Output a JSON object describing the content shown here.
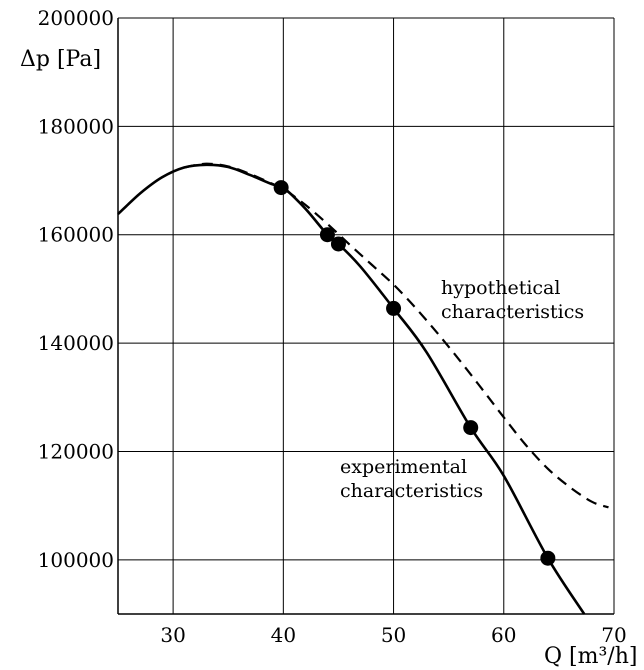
{
  "chart_data": {
    "type": "line",
    "xlabel": "Q [m³/h]",
    "ylabel": "Δp [Pa]",
    "x_ticks": [
      30,
      40,
      50,
      60,
      70
    ],
    "y_ticks": [
      100000,
      120000,
      140000,
      160000,
      180000,
      200000
    ],
    "xlim": [
      25,
      70
    ],
    "ylim": [
      90000,
      200000
    ],
    "grid": true,
    "series": [
      {
        "name": "experimental characteristics",
        "style": "solid",
        "x": [
          25,
          27,
          29,
          31,
          33,
          35,
          37,
          39,
          40,
          42,
          44,
          45,
          47,
          50,
          53,
          57,
          60,
          64,
          67.3
        ],
        "y": [
          163800,
          167600,
          170600,
          172400,
          172900,
          172500,
          171000,
          169300,
          168700,
          164800,
          160000,
          158300,
          154100,
          146400,
          138300,
          124400,
          115500,
          100300,
          90000
        ]
      },
      {
        "name": "hypothetical characteristics",
        "style": "dashed",
        "x": [
          31,
          33,
          35,
          37,
          39,
          40,
          42,
          44,
          46,
          48,
          50,
          52,
          54,
          56,
          58,
          60,
          62,
          64,
          66,
          68,
          69.5
        ],
        "y": [
          172400,
          173100,
          172600,
          171200,
          169400,
          168500,
          165500,
          162000,
          158200,
          154500,
          150800,
          146500,
          141800,
          136800,
          131600,
          126300,
          121200,
          116800,
          113400,
          110700,
          109700
        ]
      }
    ],
    "markers": {
      "series": "experimental characteristics",
      "x": [
        39.8,
        44,
        45,
        50,
        57,
        64
      ],
      "y": [
        168700,
        160000,
        158300,
        146400,
        124400,
        100300
      ]
    },
    "annotations": [
      {
        "id": "hyp_line1",
        "text": "hypothetical"
      },
      {
        "id": "hyp_line2",
        "text": "characteristics"
      },
      {
        "id": "exp_line1",
        "text": "experimental"
      },
      {
        "id": "exp_line2",
        "text": "characteristics"
      }
    ]
  }
}
